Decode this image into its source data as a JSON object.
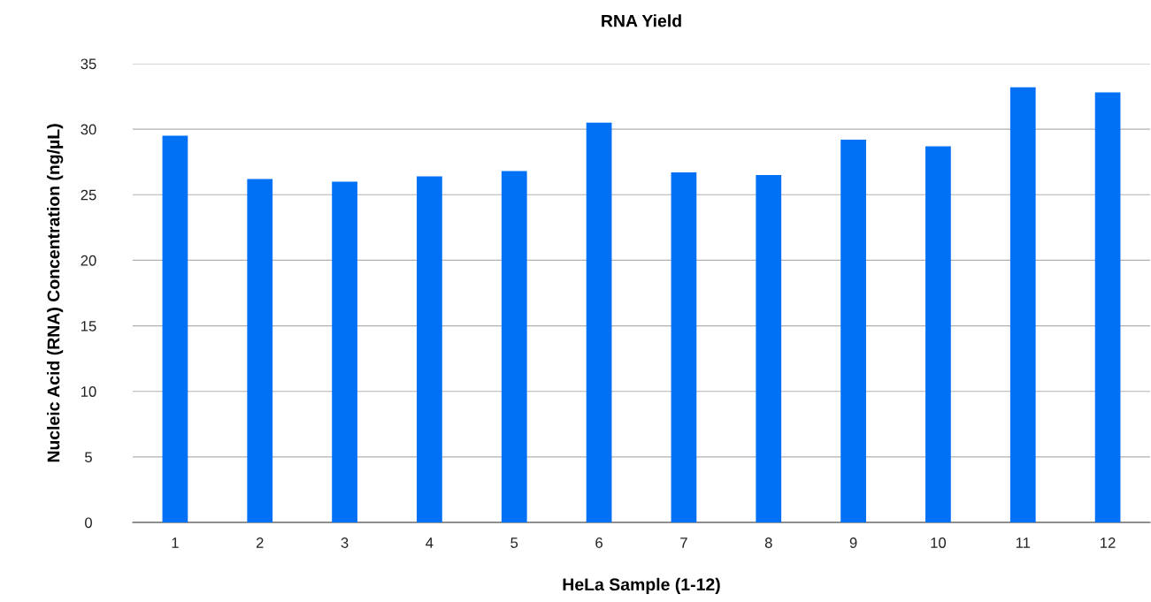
{
  "chart_data": {
    "type": "bar",
    "title": "RNA Yield",
    "xlabel": "HeLa Sample (1-12)",
    "ylabel": "Nucleic Acid (RNA) Concentration (ng/µL)",
    "categories": [
      "1",
      "2",
      "3",
      "4",
      "5",
      "6",
      "7",
      "8",
      "9",
      "10",
      "11",
      "12"
    ],
    "values": [
      29.5,
      26.2,
      26.0,
      26.4,
      26.8,
      30.5,
      26.7,
      26.5,
      29.2,
      28.7,
      33.2,
      32.8
    ],
    "color": "#0070f5",
    "ylim": [
      0,
      35
    ],
    "yticks": [
      0,
      5,
      10,
      15,
      20,
      25,
      30,
      35
    ],
    "grid": "y"
  }
}
